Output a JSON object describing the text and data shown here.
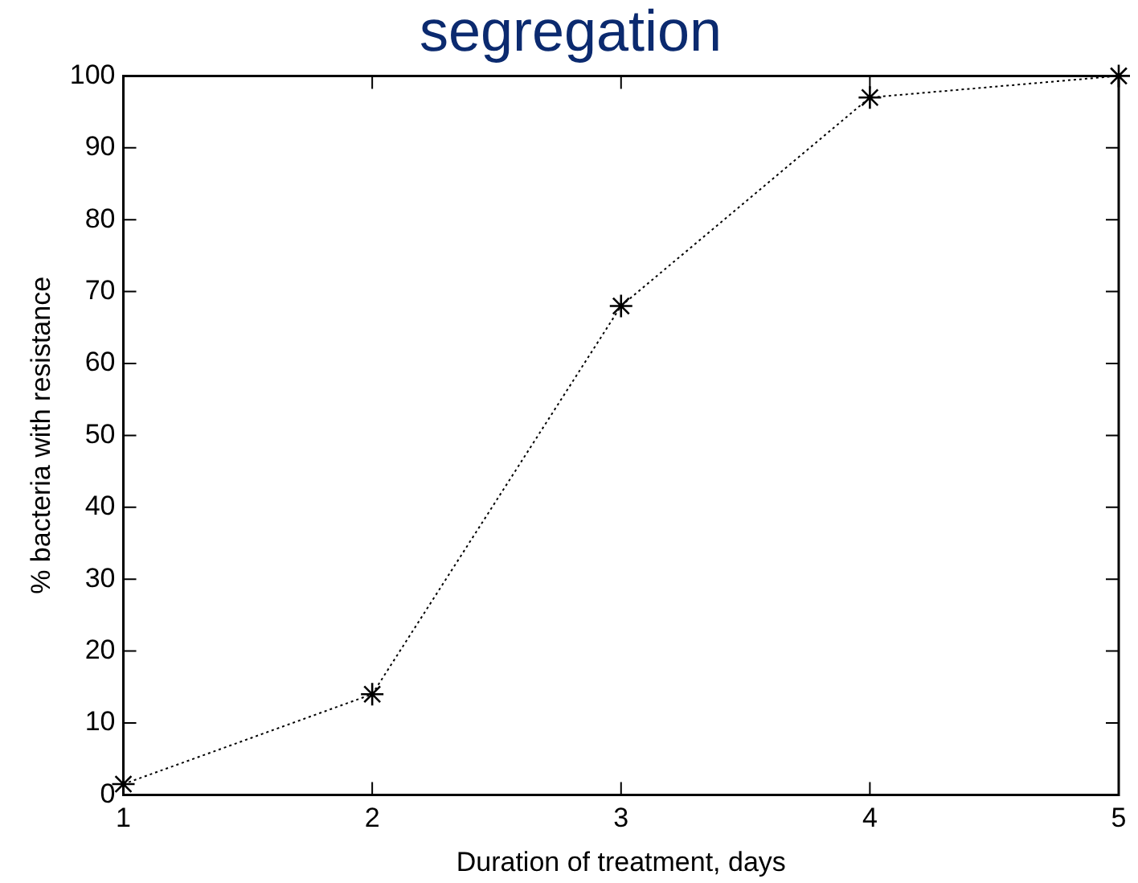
{
  "chart_data": {
    "type": "line",
    "title": "segregation",
    "x": [
      1,
      2,
      3,
      4,
      5
    ],
    "series": [
      {
        "color": "#000000",
        "values": [
          1.5,
          14,
          68,
          97,
          100
        ]
      }
    ],
    "xlabel": "Duration of treatment, days",
    "ylabel": "% bacteria with resistance",
    "xlim": [
      1,
      5
    ],
    "xticks": [
      1,
      2,
      3,
      4,
      5
    ],
    "ylim": [
      0,
      100
    ],
    "yticks": [
      0,
      10,
      20,
      30,
      40,
      50,
      60,
      70,
      80,
      90,
      100
    ],
    "grid": false,
    "legend": false,
    "marker": "cross",
    "line_style": "dotted"
  }
}
